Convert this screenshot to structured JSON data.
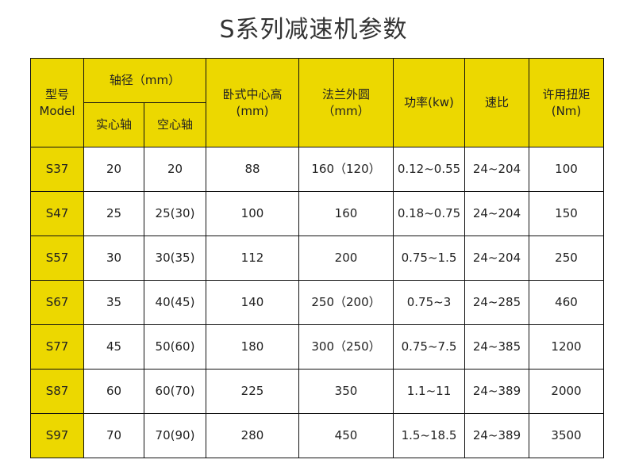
{
  "title": "S系列减速机参数",
  "header": {
    "model_cn": "型号",
    "model_en": "Model",
    "shaft": "轴径（mm）",
    "solid": "实心轴",
    "hollow": "空心轴",
    "center_height_1": "卧式中心高",
    "center_height_2": "(mm)",
    "flange_1": "法兰外圆",
    "flange_2": "（mm）",
    "power": "功率(kw)",
    "ratio": "速比",
    "torque_1": "许用扭矩",
    "torque_2": "(Nm)"
  },
  "colors": {
    "header_bg": "#ecd800"
  },
  "rows": [
    [
      "S37",
      "20",
      "20",
      "88",
      "160（120）",
      "0.12~0.55",
      "24~204",
      "100"
    ],
    [
      "S47",
      "25",
      "25(30)",
      "100",
      "160",
      "0.18~0.75",
      "24~204",
      "150"
    ],
    [
      "S57",
      "30",
      "30(35)",
      "112",
      "200",
      "0.75~1.5",
      "24~204",
      "250"
    ],
    [
      "S67",
      "35",
      "40(45)",
      "140",
      "250（200）",
      "0.75~3",
      "24~285",
      "460"
    ],
    [
      "S77",
      "45",
      "50(60)",
      "180",
      "300（250）",
      "0.75~7.5",
      "24~385",
      "1200"
    ],
    [
      "S87",
      "60",
      "60(70)",
      "225",
      "350",
      "1.1~11",
      "24~389",
      "2000"
    ],
    [
      "S97",
      "70",
      "70(90)",
      "280",
      "450",
      "1.5~18.5",
      "24~389",
      "3500"
    ]
  ]
}
